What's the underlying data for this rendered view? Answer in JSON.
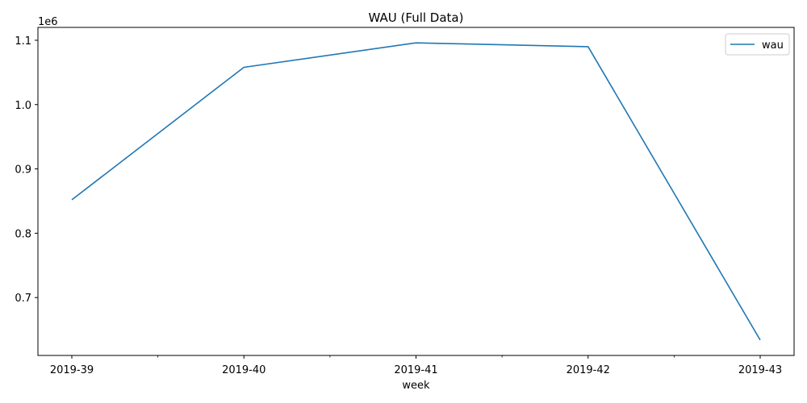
{
  "chart_data": {
    "type": "line",
    "title": "WAU (Full Data)",
    "xlabel": "week",
    "ylabel": "",
    "offset_text": "1e6",
    "categories": [
      "2019-39",
      "2019-40",
      "2019-41",
      "2019-42",
      "2019-43"
    ],
    "series": [
      {
        "name": "wau",
        "color": "#1f77b4",
        "values": [
          852000,
          1058000,
          1096000,
          1090000,
          634000
        ]
      }
    ],
    "ylim": [
      610000,
      1120000
    ],
    "yticks": [
      700000,
      800000,
      900000,
      1000000,
      1100000
    ],
    "ytick_labels": [
      "0.7",
      "0.8",
      "0.9",
      "1.0",
      "1.1"
    ],
    "minor_xticks": true,
    "grid": false,
    "legend": "top-right"
  }
}
